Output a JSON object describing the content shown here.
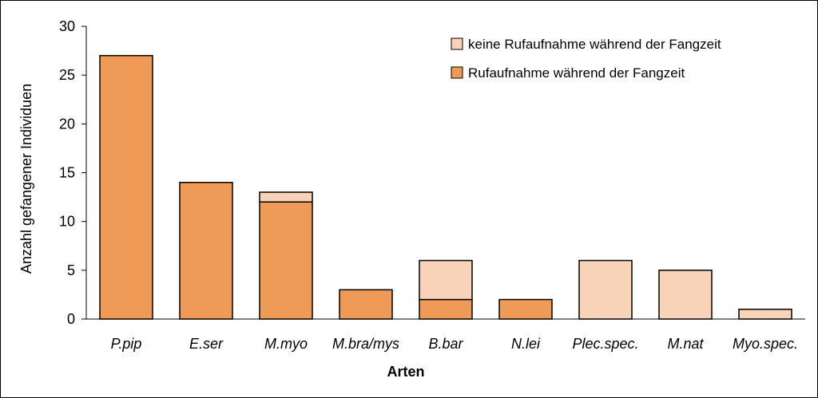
{
  "chart_data": {
    "type": "bar",
    "stacked": true,
    "categories": [
      "P.pip",
      "E.ser",
      "M.myo",
      "M.bra/mys",
      "B.bar",
      "N.lei",
      "Plec.spec.",
      "M.nat",
      "Myo.spec."
    ],
    "series": [
      {
        "name": "Rufaufnahme während der Fangzeit",
        "color": "#F09A58",
        "values": [
          27,
          14,
          12,
          3,
          2,
          2,
          0,
          0,
          0
        ]
      },
      {
        "name": "keine Rufaufnahme während der Fangzeit",
        "color": "#F8D3B7",
        "values": [
          0,
          0,
          1,
          0,
          4,
          0,
          6,
          5,
          1
        ]
      }
    ],
    "xlabel": "Arten",
    "ylabel": "Anzahl gefangener Individuen",
    "ylim": [
      0,
      30
    ],
    "yticks": [
      0,
      5,
      10,
      15,
      20,
      25,
      30
    ],
    "grid": false,
    "legend_position": "top-right",
    "legend_order": [
      1,
      0
    ]
  }
}
